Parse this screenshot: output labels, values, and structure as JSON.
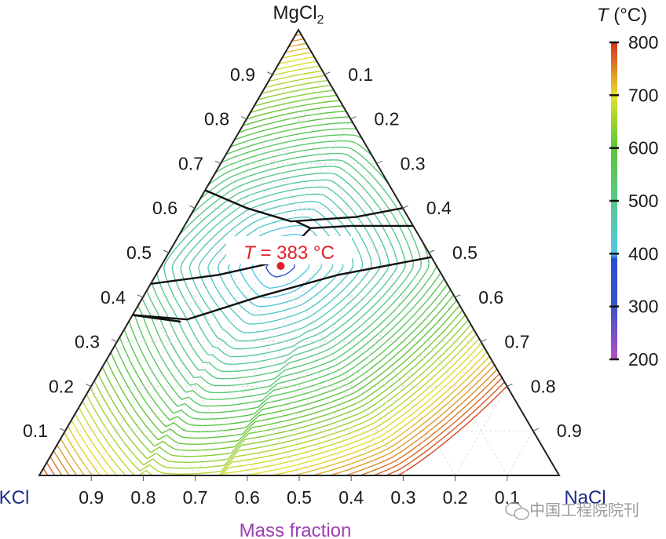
{
  "chart_data": {
    "type": "ternary-contour",
    "components": {
      "top": "MgCl2",
      "left": "KCl",
      "right": "NaCl"
    },
    "xlabel": "Mass fraction",
    "left_edge_ticks": [
      "0.1",
      "0.2",
      "0.3",
      "0.4",
      "0.5",
      "0.6",
      "0.7",
      "0.8",
      "0.9"
    ],
    "right_edge_ticks": [
      "0.1",
      "0.2",
      "0.3",
      "0.4",
      "0.5",
      "0.6",
      "0.7",
      "0.8",
      "0.9"
    ],
    "bottom_edge_ticks": [
      "0.9",
      "0.8",
      "0.7",
      "0.6",
      "0.5",
      "0.4",
      "0.3",
      "0.2",
      "0.1"
    ],
    "colorbar": {
      "title_var": "T",
      "title_unit": " (°C)",
      "range": [
        200,
        800
      ],
      "ticks": [
        "800",
        "700",
        "600",
        "500",
        "400",
        "300",
        "200"
      ],
      "stops": [
        {
          "value": 200,
          "color": "#b84fc6"
        },
        {
          "value": 300,
          "color": "#3a55c9"
        },
        {
          "value": 390,
          "color": "#2b4fd0"
        },
        {
          "value": 400,
          "color": "#50c8e8"
        },
        {
          "value": 500,
          "color": "#58c98a"
        },
        {
          "value": 600,
          "color": "#5cc43a"
        },
        {
          "value": 700,
          "color": "#e4e02a"
        },
        {
          "value": 800,
          "color": "#d73020"
        }
      ]
    },
    "eutectic": {
      "label_var": "T",
      "label_value": " = 383 °C",
      "color": "#e0202a",
      "MgCl2": 0.47,
      "NaCl": 0.23,
      "KCl": 0.3
    },
    "boundary_color": "#111111",
    "grid": true
  },
  "watermark": "中国工程院院刊",
  "watermark_icon": "wechat-icon"
}
